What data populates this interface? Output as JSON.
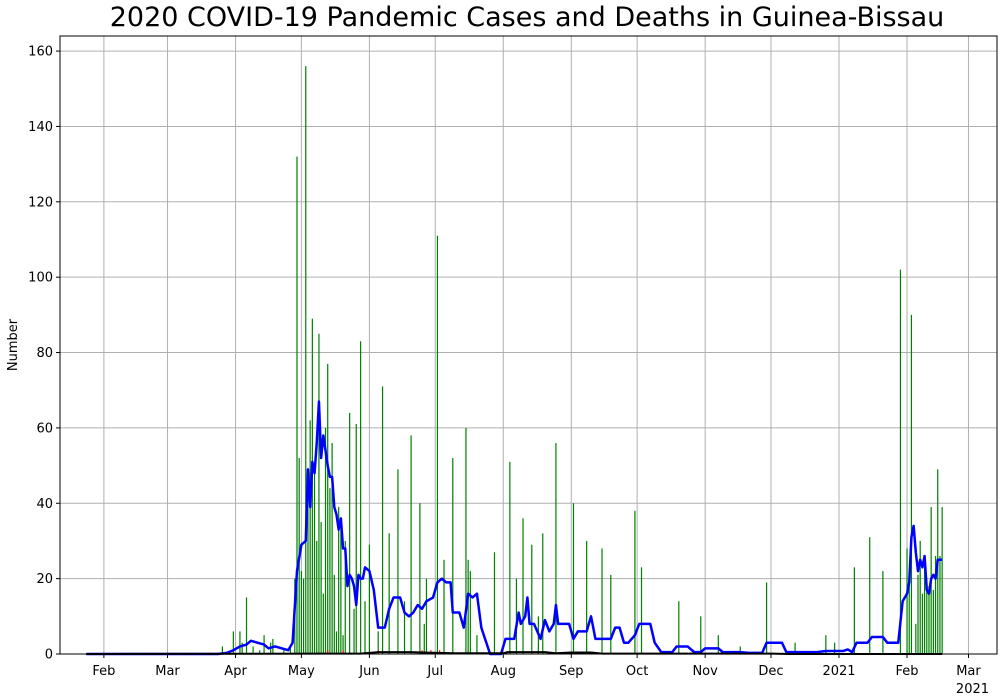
{
  "chart_data": {
    "type": "bar",
    "title": "2020 COVID-19 Pandemic Cases and Deaths in Guinea-Bissau",
    "xlabel": "",
    "ylabel": "Number",
    "ylim": [
      0,
      164
    ],
    "xlim": [
      "2020-01-12",
      "2021-03-14"
    ],
    "grid": true,
    "legend": "none",
    "y_ticks": [
      0,
      20,
      40,
      60,
      80,
      100,
      120,
      140,
      160
    ],
    "x_ticks": [
      {
        "date": "2020-02-01",
        "label": "Feb",
        "sublabel": ""
      },
      {
        "date": "2020-03-01",
        "label": "Mar",
        "sublabel": ""
      },
      {
        "date": "2020-04-01",
        "label": "Apr",
        "sublabel": ""
      },
      {
        "date": "2020-05-01",
        "label": "May",
        "sublabel": ""
      },
      {
        "date": "2020-06-01",
        "label": "Jun",
        "sublabel": ""
      },
      {
        "date": "2020-07-01",
        "label": "Jul",
        "sublabel": ""
      },
      {
        "date": "2020-08-01",
        "label": "Aug",
        "sublabel": ""
      },
      {
        "date": "2020-09-01",
        "label": "Sep",
        "sublabel": ""
      },
      {
        "date": "2020-10-01",
        "label": "Oct",
        "sublabel": ""
      },
      {
        "date": "2020-11-01",
        "label": "Nov",
        "sublabel": ""
      },
      {
        "date": "2020-12-01",
        "label": "Dec",
        "sublabel": ""
      },
      {
        "date": "2021-01-01",
        "label": "2021",
        "sublabel": ""
      },
      {
        "date": "2021-02-01",
        "label": "Feb",
        "sublabel": ""
      },
      {
        "date": "2021-03-01",
        "label": "Mar",
        "sublabel": "2021"
      }
    ],
    "series": [
      {
        "kind": "bar",
        "color": "#008000",
        "points": [
          [
            "2020-03-26",
            2
          ],
          [
            "2020-03-31",
            6
          ],
          [
            "2020-04-03",
            6
          ],
          [
            "2020-04-04",
            3
          ],
          [
            "2020-04-06",
            15
          ],
          [
            "2020-04-09",
            2
          ],
          [
            "2020-04-12",
            1
          ],
          [
            "2020-04-14",
            5
          ],
          [
            "2020-04-17",
            3
          ],
          [
            "2020-04-18",
            4
          ],
          [
            "2020-04-23",
            1
          ],
          [
            "2020-04-26",
            2
          ],
          [
            "2020-04-28",
            20
          ],
          [
            "2020-04-29",
            132
          ],
          [
            "2020-04-30",
            52
          ],
          [
            "2020-05-01",
            22
          ],
          [
            "2020-05-02",
            20
          ],
          [
            "2020-05-03",
            156
          ],
          [
            "2020-05-04",
            49
          ],
          [
            "2020-05-05",
            62
          ],
          [
            "2020-05-06",
            89
          ],
          [
            "2020-05-07",
            50
          ],
          [
            "2020-05-08",
            30
          ],
          [
            "2020-05-09",
            85
          ],
          [
            "2020-05-10",
            35
          ],
          [
            "2020-05-11",
            16
          ],
          [
            "2020-05-12",
            60
          ],
          [
            "2020-05-13",
            77
          ],
          [
            "2020-05-14",
            44
          ],
          [
            "2020-05-15",
            56
          ],
          [
            "2020-05-16",
            21
          ],
          [
            "2020-05-17",
            6
          ],
          [
            "2020-05-18",
            39
          ],
          [
            "2020-05-19",
            36
          ],
          [
            "2020-05-20",
            5
          ],
          [
            "2020-05-21",
            30
          ],
          [
            "2020-05-23",
            64
          ],
          [
            "2020-05-25",
            12
          ],
          [
            "2020-05-26",
            61
          ],
          [
            "2020-05-28",
            83
          ],
          [
            "2020-05-30",
            14
          ],
          [
            "2020-06-01",
            29
          ],
          [
            "2020-06-05",
            6
          ],
          [
            "2020-06-07",
            71
          ],
          [
            "2020-06-10",
            32
          ],
          [
            "2020-06-14",
            49
          ],
          [
            "2020-06-17",
            14
          ],
          [
            "2020-06-20",
            58
          ],
          [
            "2020-06-24",
            40
          ],
          [
            "2020-06-26",
            8
          ],
          [
            "2020-06-27",
            20
          ],
          [
            "2020-07-02",
            111
          ],
          [
            "2020-07-05",
            25
          ],
          [
            "2020-07-09",
            52
          ],
          [
            "2020-07-15",
            60
          ],
          [
            "2020-07-16",
            25
          ],
          [
            "2020-07-17",
            22
          ],
          [
            "2020-07-20",
            5
          ],
          [
            "2020-07-28",
            27
          ],
          [
            "2020-08-04",
            51
          ],
          [
            "2020-08-07",
            20
          ],
          [
            "2020-08-10",
            36
          ],
          [
            "2020-08-14",
            29
          ],
          [
            "2020-08-17",
            10
          ],
          [
            "2020-08-19",
            32
          ],
          [
            "2020-08-25",
            56
          ],
          [
            "2020-09-02",
            40
          ],
          [
            "2020-09-08",
            30
          ],
          [
            "2020-09-15",
            28
          ],
          [
            "2020-09-19",
            21
          ],
          [
            "2020-09-30",
            38
          ],
          [
            "2020-10-03",
            23
          ],
          [
            "2020-10-20",
            14
          ],
          [
            "2020-10-30",
            10
          ],
          [
            "2020-11-07",
            5
          ],
          [
            "2020-11-17",
            2
          ],
          [
            "2020-11-29",
            19
          ],
          [
            "2020-12-12",
            3
          ],
          [
            "2020-12-26",
            5
          ],
          [
            "2020-12-30",
            3
          ],
          [
            "2021-01-08",
            23
          ],
          [
            "2021-01-15",
            31
          ],
          [
            "2021-01-21",
            22
          ],
          [
            "2021-01-29",
            102
          ],
          [
            "2021-02-01",
            28
          ],
          [
            "2021-02-02",
            19
          ],
          [
            "2021-02-03",
            90
          ],
          [
            "2021-02-05",
            8
          ],
          [
            "2021-02-06",
            21
          ],
          [
            "2021-02-07",
            30
          ],
          [
            "2021-02-08",
            16
          ],
          [
            "2021-02-09",
            25
          ],
          [
            "2021-02-10",
            20
          ],
          [
            "2021-02-11",
            18
          ],
          [
            "2021-02-12",
            39
          ],
          [
            "2021-02-13",
            17
          ],
          [
            "2021-02-14",
            26
          ],
          [
            "2021-02-15",
            49
          ],
          [
            "2021-02-16",
            26
          ],
          [
            "2021-02-17",
            39
          ]
        ]
      },
      {
        "kind": "bar",
        "color": "#ff0000",
        "points": [
          [
            "2020-05-13",
            1
          ],
          [
            "2020-05-20",
            1
          ],
          [
            "2020-06-05",
            1
          ],
          [
            "2020-06-25",
            1
          ],
          [
            "2020-06-29",
            1
          ],
          [
            "2020-07-03",
            1
          ]
        ]
      },
      {
        "kind": "line",
        "color": "#0000ff",
        "width": 2.5,
        "points": [
          [
            "2020-01-24",
            0
          ],
          [
            "2020-03-24",
            0
          ],
          [
            "2020-03-28",
            0.3
          ],
          [
            "2020-03-31",
            1
          ],
          [
            "2020-04-03",
            2
          ],
          [
            "2020-04-06",
            2.5
          ],
          [
            "2020-04-08",
            3.5
          ],
          [
            "2020-04-11",
            3
          ],
          [
            "2020-04-14",
            2.5
          ],
          [
            "2020-04-16",
            1.5
          ],
          [
            "2020-04-19",
            2
          ],
          [
            "2020-04-22",
            1.5
          ],
          [
            "2020-04-25",
            1
          ],
          [
            "2020-04-27",
            3
          ],
          [
            "2020-04-29",
            22
          ],
          [
            "2020-05-01",
            29
          ],
          [
            "2020-05-03",
            30
          ],
          [
            "2020-05-04",
            49
          ],
          [
            "2020-05-05",
            39
          ],
          [
            "2020-05-06",
            51
          ],
          [
            "2020-05-07",
            48
          ],
          [
            "2020-05-08",
            56
          ],
          [
            "2020-05-09",
            67
          ],
          [
            "2020-05-10",
            52
          ],
          [
            "2020-05-11",
            58
          ],
          [
            "2020-05-12",
            54
          ],
          [
            "2020-05-13",
            50
          ],
          [
            "2020-05-14",
            47
          ],
          [
            "2020-05-15",
            47
          ],
          [
            "2020-05-16",
            39
          ],
          [
            "2020-05-17",
            37
          ],
          [
            "2020-05-18",
            33
          ],
          [
            "2020-05-19",
            36
          ],
          [
            "2020-05-20",
            28
          ],
          [
            "2020-05-21",
            28
          ],
          [
            "2020-05-22",
            18
          ],
          [
            "2020-05-23",
            21
          ],
          [
            "2020-05-24",
            20
          ],
          [
            "2020-05-25",
            18
          ],
          [
            "2020-05-26",
            13
          ],
          [
            "2020-05-27",
            21
          ],
          [
            "2020-05-28",
            20
          ],
          [
            "2020-05-29",
            20
          ],
          [
            "2020-05-30",
            23
          ],
          [
            "2020-06-01",
            22
          ],
          [
            "2020-06-03",
            17
          ],
          [
            "2020-06-05",
            7
          ],
          [
            "2020-06-08",
            7
          ],
          [
            "2020-06-10",
            12
          ],
          [
            "2020-06-12",
            15
          ],
          [
            "2020-06-15",
            15
          ],
          [
            "2020-06-17",
            11
          ],
          [
            "2020-06-19",
            10
          ],
          [
            "2020-06-21",
            11
          ],
          [
            "2020-06-23",
            13
          ],
          [
            "2020-06-25",
            12
          ],
          [
            "2020-06-27",
            14
          ],
          [
            "2020-06-30",
            15
          ],
          [
            "2020-07-02",
            19
          ],
          [
            "2020-07-04",
            20
          ],
          [
            "2020-07-06",
            19
          ],
          [
            "2020-07-08",
            19
          ],
          [
            "2020-07-09",
            11
          ],
          [
            "2020-07-12",
            11
          ],
          [
            "2020-07-14",
            7
          ],
          [
            "2020-07-16",
            16
          ],
          [
            "2020-07-18",
            15
          ],
          [
            "2020-07-20",
            16
          ],
          [
            "2020-07-22",
            7
          ],
          [
            "2020-07-26",
            0
          ],
          [
            "2020-07-31",
            0
          ],
          [
            "2020-08-02",
            4
          ],
          [
            "2020-08-06",
            4
          ],
          [
            "2020-08-08",
            11
          ],
          [
            "2020-08-09",
            8
          ],
          [
            "2020-08-11",
            10
          ],
          [
            "2020-08-12",
            15
          ],
          [
            "2020-08-13",
            8
          ],
          [
            "2020-08-15",
            8
          ],
          [
            "2020-08-18",
            4
          ],
          [
            "2020-08-20",
            9
          ],
          [
            "2020-08-22",
            6
          ],
          [
            "2020-08-24",
            8
          ],
          [
            "2020-08-25",
            13
          ],
          [
            "2020-08-26",
            8
          ],
          [
            "2020-08-31",
            8
          ],
          [
            "2020-09-02",
            4
          ],
          [
            "2020-09-04",
            6
          ],
          [
            "2020-09-08",
            6
          ],
          [
            "2020-09-10",
            10
          ],
          [
            "2020-09-12",
            4
          ],
          [
            "2020-09-15",
            4
          ],
          [
            "2020-09-17",
            4
          ],
          [
            "2020-09-19",
            4
          ],
          [
            "2020-09-21",
            7
          ],
          [
            "2020-09-23",
            7
          ],
          [
            "2020-09-25",
            3
          ],
          [
            "2020-09-27",
            3
          ],
          [
            "2020-09-30",
            5
          ],
          [
            "2020-10-02",
            8
          ],
          [
            "2020-10-07",
            8
          ],
          [
            "2020-10-09",
            3
          ],
          [
            "2020-10-12",
            0.5
          ],
          [
            "2020-10-17",
            0.5
          ],
          [
            "2020-10-19",
            2
          ],
          [
            "2020-10-24",
            2
          ],
          [
            "2020-10-27",
            0.5
          ],
          [
            "2020-10-30",
            0.5
          ],
          [
            "2020-11-01",
            1.5
          ],
          [
            "2020-11-07",
            1.5
          ],
          [
            "2020-11-09",
            0.5
          ],
          [
            "2020-11-14",
            0.5
          ],
          [
            "2020-11-17",
            0.5
          ],
          [
            "2020-11-21",
            0.3
          ],
          [
            "2020-11-27",
            0.3
          ],
          [
            "2020-11-29",
            3
          ],
          [
            "2020-12-06",
            3
          ],
          [
            "2020-12-08",
            0.5
          ],
          [
            "2020-12-22",
            0.5
          ],
          [
            "2020-12-26",
            0.8
          ],
          [
            "2021-01-03",
            0.8
          ],
          [
            "2021-01-05",
            1.2
          ],
          [
            "2021-01-07",
            0.5
          ],
          [
            "2021-01-09",
            3
          ],
          [
            "2021-01-14",
            3
          ],
          [
            "2021-01-16",
            4.5
          ],
          [
            "2021-01-21",
            4.5
          ],
          [
            "2021-01-23",
            3
          ],
          [
            "2021-01-28",
            3
          ],
          [
            "2021-01-30",
            14
          ],
          [
            "2021-02-01",
            16
          ],
          [
            "2021-02-02",
            19
          ],
          [
            "2021-02-03",
            31
          ],
          [
            "2021-02-04",
            34
          ],
          [
            "2021-02-05",
            27
          ],
          [
            "2021-02-06",
            22
          ],
          [
            "2021-02-07",
            25
          ],
          [
            "2021-02-08",
            23
          ],
          [
            "2021-02-09",
            26
          ],
          [
            "2021-02-10",
            17
          ],
          [
            "2021-02-11",
            16
          ],
          [
            "2021-02-12",
            20
          ],
          [
            "2021-02-13",
            21
          ],
          [
            "2021-02-14",
            20
          ],
          [
            "2021-02-15",
            25
          ],
          [
            "2021-02-17",
            25
          ]
        ]
      },
      {
        "kind": "line",
        "color": "#000000",
        "width": 2,
        "points": [
          [
            "2020-01-24",
            0
          ],
          [
            "2020-05-10",
            0.1
          ],
          [
            "2020-05-28",
            0.1
          ],
          [
            "2020-06-05",
            0.5
          ],
          [
            "2020-06-20",
            0.5
          ],
          [
            "2020-06-25",
            0.4
          ],
          [
            "2020-07-10",
            0.2
          ],
          [
            "2020-08-01",
            0.2
          ],
          [
            "2020-08-03",
            0.5
          ],
          [
            "2020-08-20",
            0.5
          ],
          [
            "2020-08-25",
            0.2
          ],
          [
            "2020-09-01",
            0.4
          ],
          [
            "2020-09-10",
            0.4
          ],
          [
            "2020-09-15",
            0.1
          ],
          [
            "2020-12-01",
            0.1
          ],
          [
            "2020-12-10",
            0
          ],
          [
            "2021-02-17",
            0
          ]
        ]
      }
    ]
  }
}
